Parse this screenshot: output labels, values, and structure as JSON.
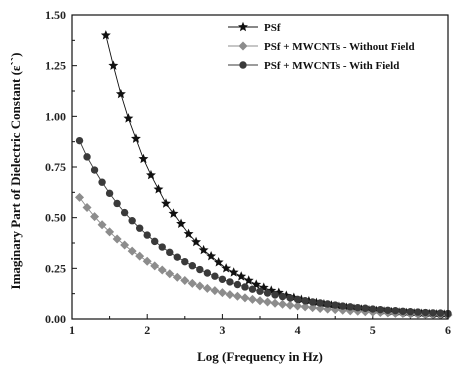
{
  "chart_data": {
    "type": "line",
    "xlabel": "Log (Frequency in Hz)",
    "ylabel": "Imaginary Part of Dielectric Constant (ε``)",
    "xlim": [
      1,
      6
    ],
    "ylim": [
      0,
      1.5
    ],
    "xticks": [
      "1",
      "2",
      "3",
      "4",
      "5",
      "6"
    ],
    "yticks": [
      "0.00",
      "0.25",
      "0.50",
      "0.75",
      "1.00",
      "1.25",
      "1.50"
    ],
    "legend_position": "top-right",
    "series": [
      {
        "name": "PSf",
        "marker": "star",
        "color": "#111111",
        "x": [
          1.45,
          1.55,
          1.65,
          1.75,
          1.85,
          1.95,
          2.05,
          2.15,
          2.25,
          2.35,
          2.45,
          2.55,
          2.65,
          2.75,
          2.85,
          2.95,
          3.05,
          3.15,
          3.25,
          3.35,
          3.45,
          3.55,
          3.65,
          3.75,
          3.85,
          3.95,
          4.05,
          4.15,
          4.25,
          4.35,
          4.45,
          4.55,
          4.65,
          4.75,
          4.85,
          4.95,
          5.05,
          5.15,
          5.25,
          5.35,
          5.45,
          5.55,
          5.65,
          5.75,
          5.85,
          5.95
        ],
        "y": [
          1.4,
          1.25,
          1.11,
          0.99,
          0.89,
          0.79,
          0.71,
          0.64,
          0.57,
          0.52,
          0.47,
          0.42,
          0.38,
          0.34,
          0.31,
          0.28,
          0.25,
          0.23,
          0.21,
          0.19,
          0.17,
          0.155,
          0.14,
          0.13,
          0.115,
          0.105,
          0.095,
          0.088,
          0.08,
          0.073,
          0.067,
          0.061,
          0.056,
          0.051,
          0.047,
          0.043,
          0.04,
          0.037,
          0.034,
          0.032,
          0.03,
          0.028,
          0.026,
          0.025,
          0.023,
          0.022
        ]
      },
      {
        "name": "PSf + MWCNTs - Without Field",
        "marker": "diamond",
        "color": "#8c8c8c",
        "x": [
          1.1,
          1.2,
          1.3,
          1.4,
          1.5,
          1.6,
          1.7,
          1.8,
          1.9,
          2.0,
          2.1,
          2.2,
          2.3,
          2.4,
          2.5,
          2.6,
          2.7,
          2.8,
          2.9,
          3.0,
          3.1,
          3.2,
          3.3,
          3.4,
          3.5,
          3.6,
          3.7,
          3.8,
          3.9,
          4.0,
          4.1,
          4.2,
          4.3,
          4.4,
          4.5,
          4.6,
          4.7,
          4.8,
          4.9,
          5.0,
          5.1,
          5.2,
          5.3,
          5.4,
          5.5,
          5.6,
          5.7,
          5.8,
          5.9,
          6.0
        ],
        "y": [
          0.6,
          0.55,
          0.505,
          0.465,
          0.43,
          0.395,
          0.365,
          0.335,
          0.31,
          0.285,
          0.262,
          0.242,
          0.223,
          0.206,
          0.19,
          0.176,
          0.163,
          0.151,
          0.14,
          0.13,
          0.12,
          0.112,
          0.104,
          0.097,
          0.09,
          0.084,
          0.078,
          0.073,
          0.068,
          0.064,
          0.06,
          0.056,
          0.052,
          0.049,
          0.046,
          0.043,
          0.04,
          0.038,
          0.036,
          0.034,
          0.032,
          0.03,
          0.028,
          0.027,
          0.025,
          0.024,
          0.023,
          0.022,
          0.021,
          0.02
        ]
      },
      {
        "name": "PSf + MWCNTs - With Field",
        "marker": "circle",
        "color": "#3a3a3a",
        "x": [
          1.1,
          1.2,
          1.3,
          1.4,
          1.5,
          1.6,
          1.7,
          1.8,
          1.9,
          2.0,
          2.1,
          2.2,
          2.3,
          2.4,
          2.5,
          2.6,
          2.7,
          2.8,
          2.9,
          3.0,
          3.1,
          3.2,
          3.3,
          3.4,
          3.5,
          3.6,
          3.7,
          3.8,
          3.9,
          4.0,
          4.1,
          4.2,
          4.3,
          4.4,
          4.5,
          4.6,
          4.7,
          4.8,
          4.9,
          5.0,
          5.1,
          5.2,
          5.3,
          5.4,
          5.5,
          5.6,
          5.7,
          5.8,
          5.9,
          6.0
        ],
        "y": [
          0.88,
          0.8,
          0.735,
          0.675,
          0.62,
          0.57,
          0.525,
          0.485,
          0.448,
          0.414,
          0.383,
          0.355,
          0.329,
          0.305,
          0.283,
          0.263,
          0.244,
          0.227,
          0.211,
          0.196,
          0.183,
          0.17,
          0.158,
          0.147,
          0.137,
          0.128,
          0.119,
          0.111,
          0.104,
          0.097,
          0.09,
          0.084,
          0.079,
          0.074,
          0.069,
          0.064,
          0.06,
          0.056,
          0.053,
          0.049,
          0.046,
          0.043,
          0.041,
          0.038,
          0.036,
          0.034,
          0.032,
          0.03,
          0.029,
          0.027
        ]
      }
    ]
  }
}
